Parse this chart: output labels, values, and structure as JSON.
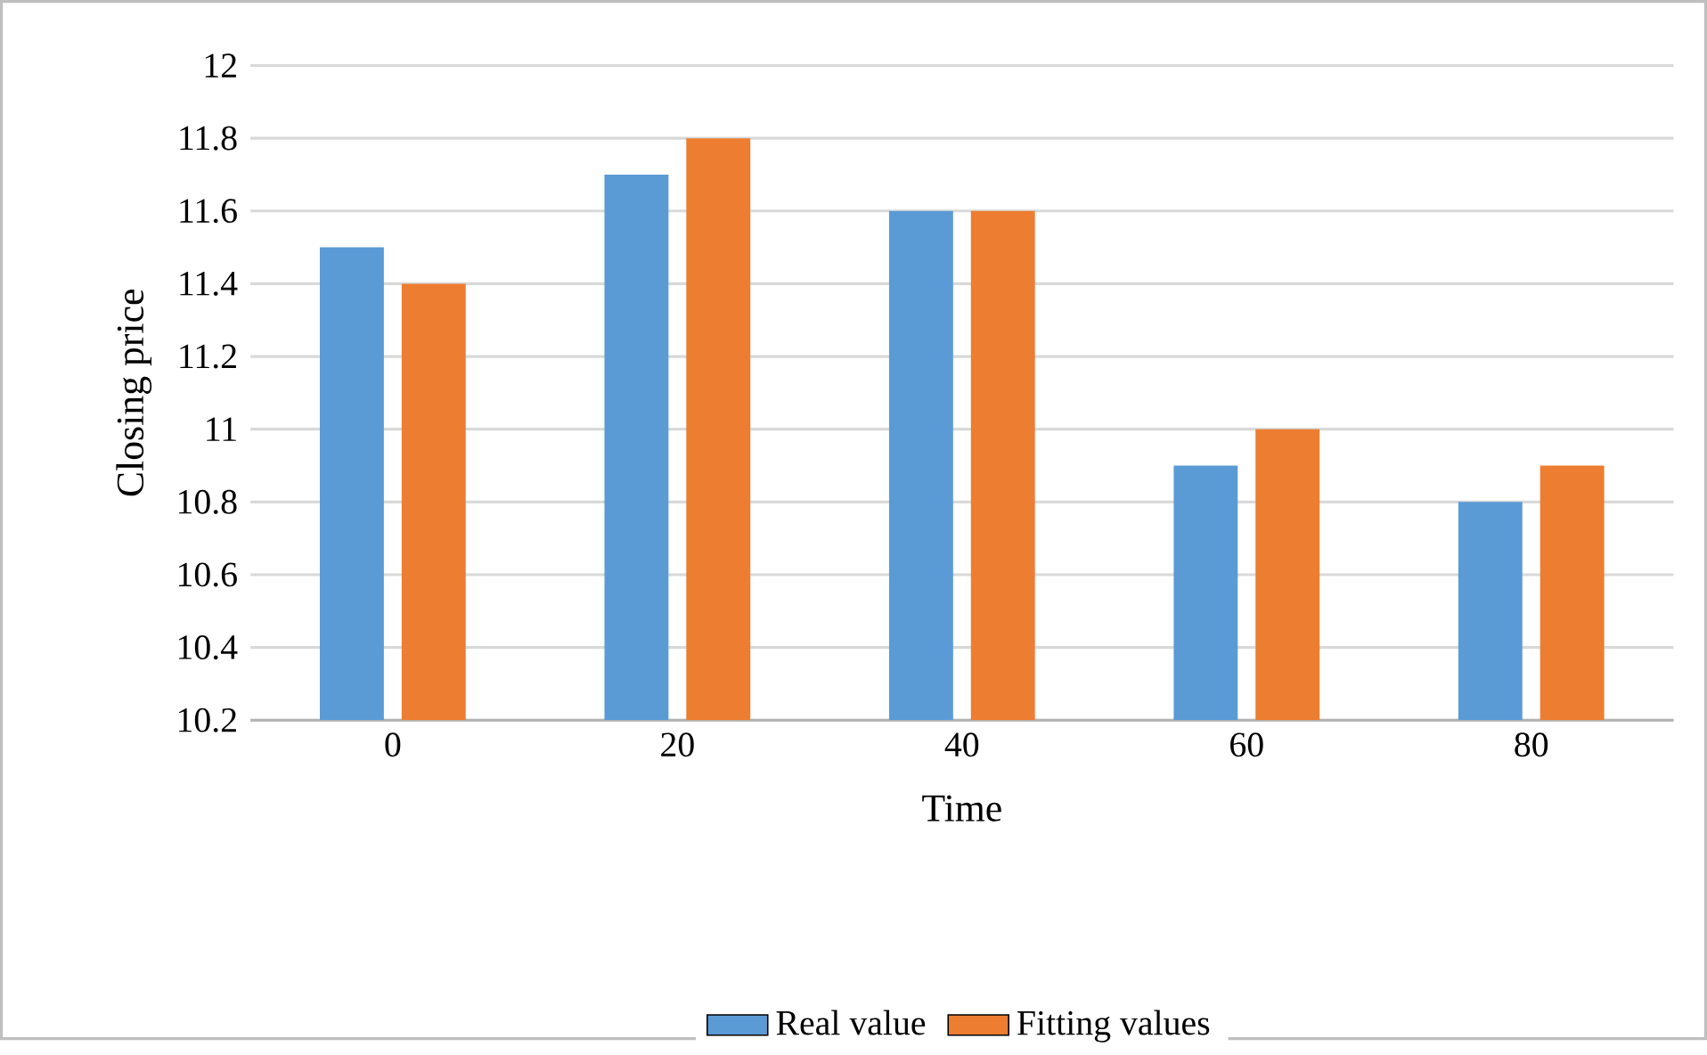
{
  "chart_data": {
    "type": "bar",
    "xlabel": "Time",
    "ylabel": "Closing price",
    "categories": [
      "0",
      "20",
      "40",
      "60",
      "80"
    ],
    "series": [
      {
        "name": "Real value",
        "color": "#5b9bd5",
        "values": [
          11.5,
          11.7,
          11.6,
          10.9,
          10.8
        ]
      },
      {
        "name": "Fitting values",
        "color": "#ed7d31",
        "values": [
          11.4,
          11.8,
          11.6,
          11.0,
          10.9
        ]
      }
    ],
    "ylim": [
      10.2,
      12
    ],
    "yticks": [
      10.2,
      10.4,
      10.6,
      10.8,
      11,
      11.2,
      11.4,
      11.6,
      11.8,
      12
    ],
    "grid": "y",
    "legend": "bottom"
  }
}
